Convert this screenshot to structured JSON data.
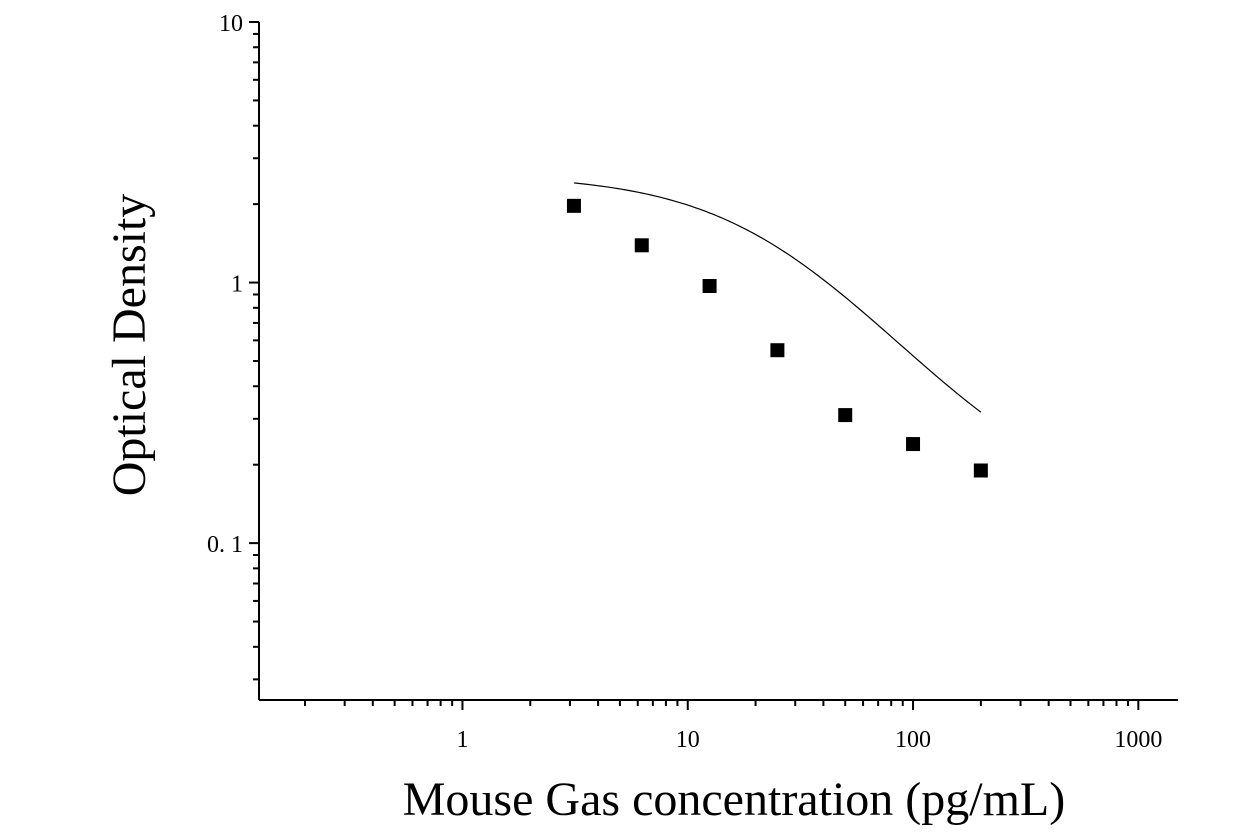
{
  "chart_data": {
    "type": "scatter",
    "title": "",
    "xlabel": "Mouse Gas concentration (pg/mL)",
    "ylabel": "Optical Density",
    "xscale": "log",
    "yscale": "log",
    "xlim": [
      0.125,
      1500
    ],
    "ylim": [
      0.025,
      10
    ],
    "x_tick_labels": [
      "1",
      "10",
      "100",
      "1000"
    ],
    "y_tick_labels": [
      "10",
      "1",
      "0. 1"
    ],
    "grid": false,
    "legend": "none",
    "series": [
      {
        "x": [
          3.125,
          6.25,
          12.5,
          25,
          50,
          100,
          200
        ],
        "y": [
          1.97,
          1.39,
          0.97,
          0.55,
          0.31,
          0.24,
          0.19
        ]
      }
    ],
    "fit_curve": "four-parameter logistic",
    "marker": "square",
    "color": "#000000"
  }
}
